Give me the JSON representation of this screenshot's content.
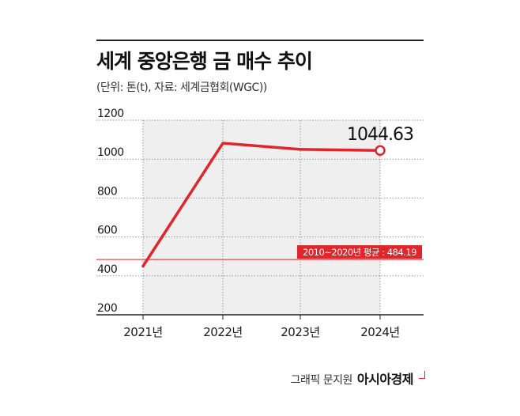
{
  "header": {
    "title": "세계 중앙은행 금 매수 추이",
    "subtitle": "(단위: 톤(t), 자료: 세계금협회(WGC))"
  },
  "footer": {
    "credit": "그래픽 문지원",
    "brand": "아시아경제"
  },
  "colors": {
    "line": "#e0262b",
    "area": "#efefef",
    "grid": "#9a9a9a",
    "axis": "#222222",
    "text": "#1a1a1a"
  },
  "chart_data": {
    "type": "line",
    "title": "세계 중앙은행 금 매수 추이",
    "ylabel": "",
    "xlabel": "",
    "categories": [
      "2021년",
      "2022년",
      "2023년",
      "2024년"
    ],
    "series": [
      {
        "values": [
          450,
          1082,
          1050,
          1044.63
        ]
      }
    ],
    "ylim": [
      200,
      1200
    ],
    "yticks": [
      "200",
      "400",
      "600",
      "800",
      "1000",
      "1200"
    ],
    "grid": true,
    "annotations": {
      "last_value_label": "1044.63",
      "reference_line": {
        "value": 484.19,
        "label": "2010~2020년 평균 : 484.19"
      }
    }
  }
}
